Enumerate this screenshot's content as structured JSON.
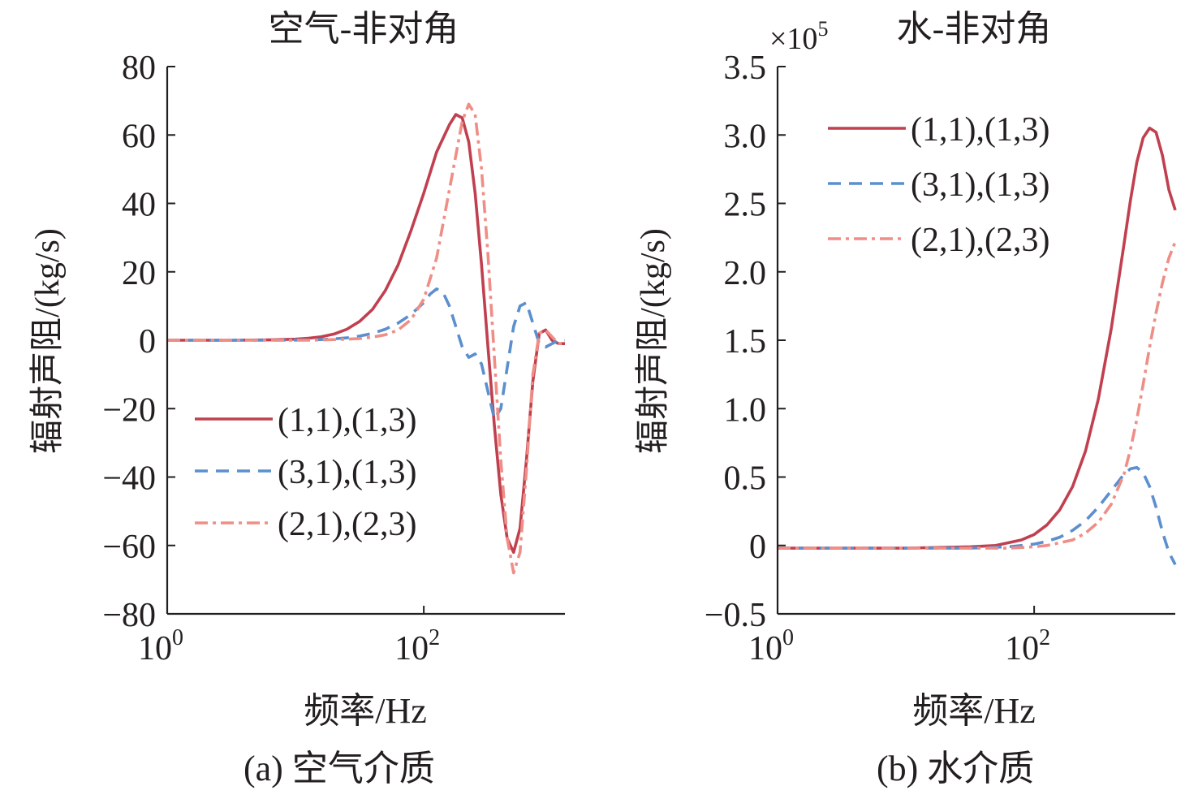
{
  "panels": [
    {
      "caption": "(a) 空气介质",
      "chart": {
        "type": "line",
        "title": "空气-非对角",
        "xlabel": "频率/Hz",
        "ylabel": "辐射声阻/(kg/s)",
        "xscale": "log",
        "xlim_log10": [
          0,
          3.1
        ],
        "xticks": [
          {
            "base": "10",
            "exp": "0",
            "log10": 0
          },
          {
            "base": "10",
            "exp": "2",
            "log10": 2
          }
        ],
        "ylim": [
          -80,
          80
        ],
        "yticks": [
          {
            "value": 80,
            "label": "80"
          },
          {
            "value": 60,
            "label": "60"
          },
          {
            "value": 40,
            "label": "40"
          },
          {
            "value": 20,
            "label": "20"
          },
          {
            "value": 0,
            "label": "0"
          },
          {
            "value": -20,
            "label": "−20"
          },
          {
            "value": -40,
            "label": "−40"
          },
          {
            "value": -60,
            "label": "−60"
          },
          {
            "value": -80,
            "label": "−80"
          }
        ],
        "y_multiplier": "",
        "legend_position": "lower-left",
        "series": [
          {
            "name": "(1,1),(1,3)",
            "color": "#c0404f",
            "dash": "solid",
            "x_log10": [
              0,
              0.5,
              0.8,
              1.0,
              1.1,
              1.2,
              1.3,
              1.4,
              1.5,
              1.6,
              1.7,
              1.8,
              1.9,
              2.0,
              2.1,
              2.2,
              2.25,
              2.3,
              2.35,
              2.4,
              2.45,
              2.5,
              2.55,
              2.6,
              2.65,
              2.7,
              2.75,
              2.8,
              2.85,
              2.9,
              2.95,
              3.0,
              3.05,
              3.1
            ],
            "y": [
              0,
              0,
              0.1,
              0.3,
              0.6,
              1.0,
              1.8,
              3.2,
              5.5,
              9,
              14.5,
              22,
              32,
              43,
              55,
              63,
              66,
              65,
              58,
              43,
              22,
              -2,
              -25,
              -45,
              -58,
              -62,
              -55,
              -35,
              -12,
              2,
              3,
              0,
              -1,
              -1
            ]
          },
          {
            "name": "(3,1),(1,3)",
            "color": "#5b8fce",
            "dash": "dashed",
            "x_log10": [
              0,
              0.5,
              0.8,
              1.0,
              1.1,
              1.2,
              1.3,
              1.4,
              1.5,
              1.6,
              1.7,
              1.8,
              1.9,
              2.0,
              2.05,
              2.1,
              2.15,
              2.2,
              2.25,
              2.3,
              2.35,
              2.4,
              2.45,
              2.5,
              2.55,
              2.6,
              2.65,
              2.7,
              2.75,
              2.8,
              2.85,
              2.9,
              2.95,
              3.0,
              3.05,
              3.1
            ],
            "y": [
              0,
              0,
              0,
              0.05,
              0.1,
              0.2,
              0.4,
              0.7,
              1.2,
              2.0,
              3.2,
              5,
              7.5,
              11,
              13.5,
              15,
              14,
              10,
              4,
              -2,
              -5,
              -4,
              -7,
              -15,
              -23,
              -20,
              -8,
              4,
              10,
              11,
              5,
              -1,
              -2,
              -1,
              0,
              0
            ]
          },
          {
            "name": "(2,1),(2,3)",
            "color": "#ef8e86",
            "dash": "dashdot",
            "x_log10": [
              0,
              0.5,
              0.8,
              1.0,
              1.1,
              1.2,
              1.3,
              1.4,
              1.5,
              1.6,
              1.7,
              1.8,
              1.9,
              2.0,
              2.1,
              2.2,
              2.3,
              2.35,
              2.4,
              2.45,
              2.5,
              2.55,
              2.6,
              2.65,
              2.7,
              2.75,
              2.8,
              2.85,
              2.9,
              2.95,
              3.0,
              3.05,
              3.1
            ],
            "y": [
              0,
              0,
              0,
              0,
              0,
              0.1,
              0.2,
              0.3,
              0.5,
              0.9,
              1.6,
              3,
              6,
              12,
              24,
              44,
              64,
              69,
              66,
              50,
              25,
              -5,
              -35,
              -58,
              -68,
              -62,
              -38,
              -10,
              2,
              3,
              1,
              -1,
              -1
            ]
          }
        ]
      }
    },
    {
      "caption": "(b) 水介质",
      "chart": {
        "type": "line",
        "title": "水-非对角",
        "xlabel": "频率/Hz",
        "ylabel": "辐射声阻/(kg/s)",
        "xscale": "log",
        "xlim_log10": [
          0,
          3.1
        ],
        "xticks": [
          {
            "base": "10",
            "exp": "0",
            "log10": 0
          },
          {
            "base": "10",
            "exp": "2",
            "log10": 2
          }
        ],
        "ylim": [
          -0.5,
          3.5
        ],
        "yticks": [
          {
            "value": 3.5,
            "label": "3.5"
          },
          {
            "value": 3.0,
            "label": "3.0"
          },
          {
            "value": 2.5,
            "label": "2.5"
          },
          {
            "value": 2.0,
            "label": "2.0"
          },
          {
            "value": 1.5,
            "label": "1.5"
          },
          {
            "value": 1.0,
            "label": "1.0"
          },
          {
            "value": 0.5,
            "label": "0.5"
          },
          {
            "value": 0,
            "label": "0"
          },
          {
            "value": -0.5,
            "label": "−0.5"
          }
        ],
        "y_multiplier": "×10",
        "y_multiplier_exp": "5",
        "legend_position": "top-left",
        "series": [
          {
            "name": "(1,1),(1,3)",
            "color": "#c0404f",
            "dash": "solid",
            "x_log10": [
              0,
              0.5,
              1.0,
              1.5,
              1.7,
              1.8,
              1.9,
              2.0,
              2.1,
              2.2,
              2.3,
              2.4,
              2.5,
              2.6,
              2.7,
              2.75,
              2.8,
              2.85,
              2.9,
              2.95,
              3.0,
              3.05,
              3.1
            ],
            "y": [
              -0.02,
              -0.02,
              -0.02,
              -0.01,
              0.0,
              0.02,
              0.04,
              0.08,
              0.15,
              0.26,
              0.43,
              0.69,
              1.07,
              1.58,
              2.2,
              2.52,
              2.8,
              2.98,
              3.05,
              3.02,
              2.85,
              2.6,
              2.45
            ]
          },
          {
            "name": "(3,1),(1,3)",
            "color": "#5b8fce",
            "dash": "dashed",
            "x_log10": [
              0,
              1.0,
              1.5,
              1.8,
              1.9,
              2.0,
              2.1,
              2.2,
              2.3,
              2.4,
              2.5,
              2.6,
              2.7,
              2.75,
              2.8,
              2.85,
              2.9,
              2.95,
              3.0,
              3.05,
              3.1
            ],
            "y": [
              -0.02,
              -0.02,
              -0.02,
              -0.01,
              0.0,
              0.01,
              0.03,
              0.06,
              0.11,
              0.18,
              0.28,
              0.4,
              0.52,
              0.56,
              0.57,
              0.53,
              0.43,
              0.28,
              0.1,
              -0.05,
              -0.14
            ]
          },
          {
            "name": "(2,1),(2,3)",
            "color": "#ef8e86",
            "dash": "dashdot",
            "x_log10": [
              0,
              1.0,
              1.5,
              1.8,
              2.0,
              2.1,
              2.2,
              2.3,
              2.4,
              2.5,
              2.6,
              2.7,
              2.75,
              2.8,
              2.85,
              2.9,
              2.95,
              3.0,
              3.05,
              3.1
            ],
            "y": [
              -0.02,
              -0.02,
              -0.02,
              -0.02,
              -0.01,
              0.0,
              0.02,
              0.04,
              0.09,
              0.17,
              0.3,
              0.52,
              0.7,
              0.92,
              1.18,
              1.45,
              1.7,
              1.92,
              2.1,
              2.22
            ]
          }
        ]
      }
    }
  ]
}
